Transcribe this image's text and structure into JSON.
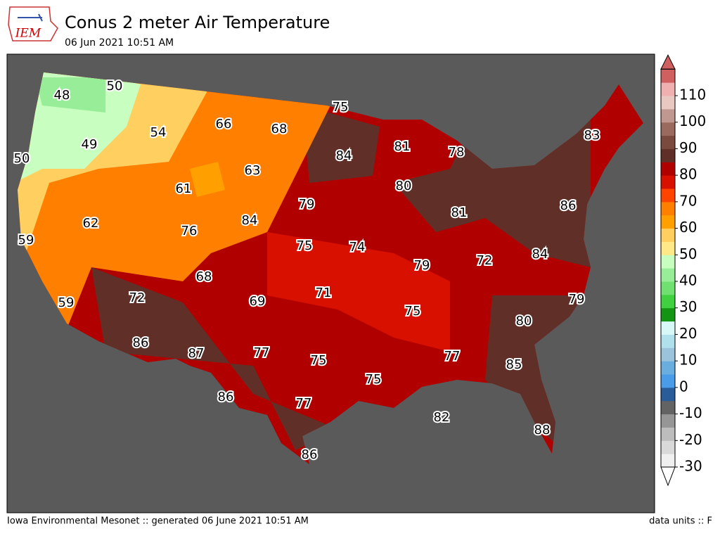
{
  "header": {
    "logo_text": "IEM",
    "title": "Conus 2 meter Air Temperature",
    "subtitle": "06 Jun 2021 10:51 AM"
  },
  "map": {
    "labels": [
      48,
      50,
      54,
      66,
      68,
      75,
      49,
      50,
      84,
      81,
      78,
      83,
      63,
      61,
      80,
      79,
      86,
      81,
      62,
      84,
      76,
      59,
      75,
      74,
      84,
      72,
      79,
      68,
      71,
      72,
      69,
      79,
      59,
      75,
      80,
      86,
      87,
      77,
      75,
      77,
      85,
      75,
      86,
      77,
      82,
      88,
      86
    ]
  },
  "colorbar": {
    "ticks": [
      -30,
      -20,
      -10,
      0,
      10,
      20,
      30,
      40,
      50,
      60,
      70,
      80,
      90,
      100,
      110
    ],
    "colors": [
      "#f0f0f0",
      "#d9d9d9",
      "#bdbdbd",
      "#969696",
      "#636363",
      "#2a5c9a",
      "#4a9be8",
      "#6aaee0",
      "#9cc3dc",
      "#b0e0ec",
      "#d8f8f8",
      "#139513",
      "#40d040",
      "#70e070",
      "#98ee98",
      "#c8ffc0",
      "#ffe888",
      "#ffd060",
      "#ffa000",
      "#ff7f00",
      "#ff4400",
      "#d81000",
      "#b00000",
      "#603028",
      "#7a4a3e",
      "#9a6a5e",
      "#c09890",
      "#e8c8c0",
      "#f0b0b0",
      "#d06060"
    ]
  },
  "footer": {
    "left": "Iowa Environmental Mesonet :: generated 06 June 2021 10:51 AM",
    "right": "data units :: F"
  }
}
